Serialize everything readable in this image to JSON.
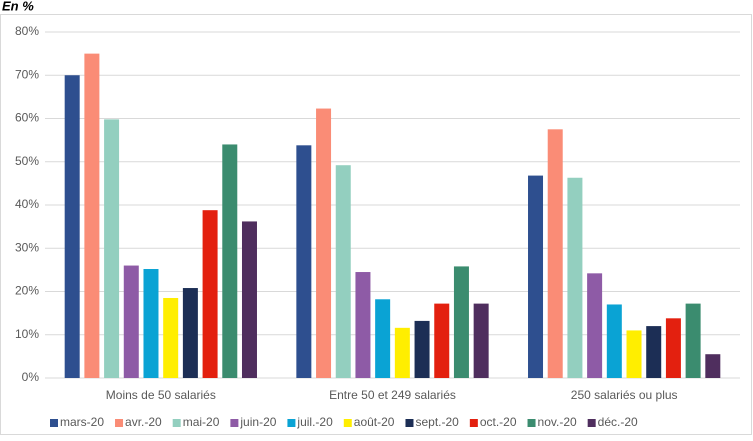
{
  "chart_data": {
    "type": "bar",
    "title": "En %",
    "categories": [
      "Moins de 50 salariés",
      "Entre 50 et 249 salariés",
      "250 salariés ou plus"
    ],
    "series": [
      {
        "name": "mars-20",
        "color": "#2e4f8f",
        "values": [
          70,
          53.8,
          46.8
        ]
      },
      {
        "name": "avr.-20",
        "color": "#fa8c76",
        "values": [
          75,
          62.3,
          57.5
        ]
      },
      {
        "name": "mai-20",
        "color": "#93cfbf",
        "values": [
          59.8,
          49.2,
          46.3
        ]
      },
      {
        "name": "juin-20",
        "color": "#8e5ba6",
        "values": [
          26,
          24.5,
          24.2
        ]
      },
      {
        "name": "juil.-20",
        "color": "#0aa3d4",
        "values": [
          25.2,
          18.2,
          17
        ]
      },
      {
        "name": "août-20",
        "color": "#ffee00",
        "values": [
          18.5,
          11.6,
          11
        ]
      },
      {
        "name": "sept.-20",
        "color": "#1c2e55",
        "values": [
          20.8,
          13.2,
          12
        ]
      },
      {
        "name": "oct.-20",
        "color": "#e3200f",
        "values": [
          38.8,
          17.2,
          13.8
        ]
      },
      {
        "name": "nov.-20",
        "color": "#3b8c6f",
        "values": [
          54,
          25.8,
          17.2
        ]
      },
      {
        "name": "déc.-20",
        "color": "#4f2e5e",
        "values": [
          36.2,
          17.2,
          5.5
        ]
      }
    ],
    "ylim": [
      0,
      80
    ],
    "yticks": [
      {
        "value": 0,
        "label": "0%"
      },
      {
        "value": 10,
        "label": "10%"
      },
      {
        "value": 20,
        "label": "20%"
      },
      {
        "value": 30,
        "label": "30%"
      },
      {
        "value": 40,
        "label": "40%"
      },
      {
        "value": 50,
        "label": "50%"
      },
      {
        "value": 60,
        "label": "60%"
      },
      {
        "value": 70,
        "label": "70%"
      },
      {
        "value": 80,
        "label": "80%"
      }
    ],
    "grid": true,
    "legend": "bottom"
  }
}
